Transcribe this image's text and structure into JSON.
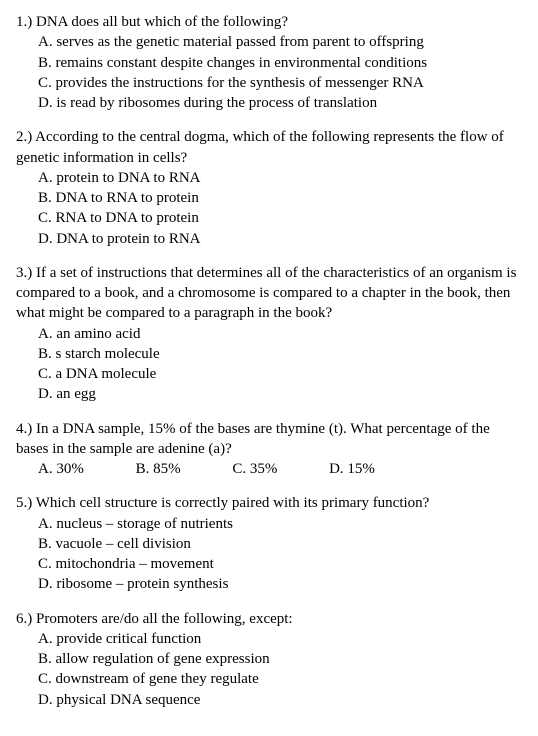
{
  "questions": [
    {
      "stem": "1.) DNA does all but which of the following?",
      "layout": "block",
      "options": [
        "A. serves as the genetic material passed from parent to offspring",
        "B. remains constant despite changes in environmental conditions",
        "C. provides the instructions for the synthesis of messenger RNA",
        "D. is read by ribosomes during the process of translation"
      ]
    },
    {
      "stem": "2.) According to the central dogma, which of the following represents the flow of genetic information in cells?",
      "layout": "block",
      "options": [
        "A. protein to DNA to RNA",
        "B. DNA to RNA to protein",
        "C. RNA to DNA to protein",
        "D. DNA to protein to RNA"
      ]
    },
    {
      "stem": "3.) If a set of instructions that determines all of the characteristics of an organism is compared to a book, and a chromosome is compared to a chapter in the book, then what might be compared to a paragraph in the book?",
      "layout": "block",
      "options": [
        "A. an amino acid",
        "B. s starch molecule",
        "C. a DNA molecule",
        "D. an egg"
      ]
    },
    {
      "stem": "4.) In a DNA sample, 15% of the bases are thymine (t). What percentage of the bases in the sample are adenine (a)?",
      "layout": "inline",
      "options": [
        "A. 30%",
        "B. 85%",
        "C. 35%",
        "D. 15%"
      ]
    },
    {
      "stem": "5.) Which cell structure is correctly paired with its primary function?",
      "layout": "block",
      "options": [
        "A. nucleus – storage of nutrients",
        "B. vacuole – cell division",
        "C. mitochondria – movement",
        "D. ribosome – protein synthesis"
      ]
    },
    {
      "stem": "6.) Promoters are/do all the following, except:",
      "layout": "block",
      "options": [
        "A. provide critical function",
        "B. allow regulation of gene expression",
        "C. downstream of gene they regulate",
        "D. physical DNA sequence"
      ]
    }
  ]
}
